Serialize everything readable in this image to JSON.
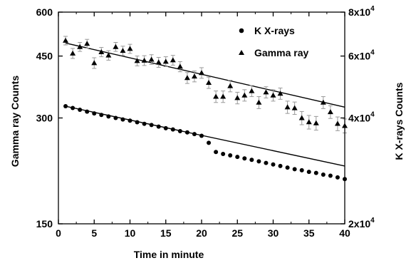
{
  "chart_data": {
    "type": "scatter",
    "xlabel": "Time in minute",
    "ylabel_left": "Gamma ray Counts",
    "ylabel_right": "K X-rays Counts",
    "x_range": [
      0,
      40
    ],
    "y_left_range": [
      150,
      600
    ],
    "y_left_scale": "log",
    "y_right_range": [
      20000,
      80000
    ],
    "y_right_scale": "log",
    "grid": false,
    "legend_placement": "top-right",
    "x_ticks": [
      "0",
      "5",
      "10",
      "15",
      "20",
      "25",
      "30",
      "35",
      "40"
    ],
    "x_tick_values": [
      0,
      5,
      10,
      15,
      20,
      25,
      30,
      35,
      40
    ],
    "y_left_ticks": [
      "150",
      "300",
      "450",
      "600"
    ],
    "y_left_tick_values": [
      150,
      300,
      450,
      600
    ],
    "y_right_ticks": [
      {
        "mantissa": "2x10",
        "exp": "4",
        "value": 20000
      },
      {
        "mantissa": "4x10",
        "exp": "4",
        "value": 40000
      },
      {
        "mantissa": "6x10",
        "exp": "4",
        "value": 60000
      },
      {
        "mantissa": "8x10",
        "exp": "4",
        "value": 80000
      }
    ],
    "series": [
      {
        "name": "Gamma ray",
        "marker": "triangle",
        "axis": "left",
        "x": [
          1,
          2,
          3,
          4,
          5,
          6,
          7,
          8,
          9,
          10,
          11,
          12,
          13,
          14,
          15,
          16,
          17,
          18,
          19,
          20,
          21,
          22,
          23,
          24,
          25,
          26,
          27,
          28,
          29,
          30,
          31,
          32,
          33,
          34,
          35,
          36,
          37,
          38,
          39,
          40
        ],
        "y": [
          498,
          458,
          478,
          488,
          430,
          462,
          452,
          478,
          466,
          472,
          436,
          437,
          440,
          432,
          434,
          438,
          420,
          390,
          394,
          403,
          378,
          345,
          345,
          370,
          342,
          348,
          358,
          332,
          355,
          348,
          352,
          322,
          320,
          300,
          292,
          290,
          332,
          312,
          289,
          285
        ],
        "error": [
          14,
          15,
          14,
          14,
          15,
          14,
          14,
          14,
          14,
          14,
          14,
          14,
          14,
          14,
          14,
          14,
          14,
          14,
          14,
          14,
          14,
          13,
          13,
          14,
          13,
          13,
          13,
          13,
          13,
          13,
          13,
          13,
          13,
          13,
          13,
          13,
          13,
          13,
          13,
          13
        ]
      },
      {
        "name": "K X-rays",
        "marker": "circle",
        "axis": "right",
        "x": [
          1,
          2,
          3,
          4,
          5,
          6,
          7,
          8,
          9,
          10,
          11,
          12,
          13,
          14,
          15,
          16,
          17,
          18,
          19,
          20,
          21,
          22,
          23,
          24,
          25,
          26,
          27,
          28,
          29,
          30,
          31,
          32,
          33,
          34,
          35,
          36,
          37,
          38,
          39,
          40
        ],
        "y": [
          43200,
          42700,
          42200,
          41700,
          41200,
          40800,
          40400,
          40000,
          39600,
          39300,
          38900,
          38500,
          38200,
          37800,
          37400,
          37100,
          36700,
          36400,
          36000,
          35600,
          34000,
          32000,
          31600,
          31300,
          31000,
          30700,
          30400,
          30100,
          29800,
          29500,
          29200,
          28900,
          28600,
          28400,
          28100,
          27900,
          27600,
          27400,
          27100,
          26800
        ]
      }
    ],
    "fits": [
      {
        "series": "Gamma ray",
        "axis": "left",
        "x": [
          1,
          40
        ],
        "y": [
          490,
          322
        ]
      },
      {
        "series": "K X-rays",
        "axis": "right",
        "x": [
          1,
          40
        ],
        "y": [
          43200,
          29200
        ]
      }
    ],
    "legend": [
      {
        "label": "K X-rays",
        "marker": "circle"
      },
      {
        "label": "Gamma ray",
        "marker": "triangle"
      }
    ]
  }
}
